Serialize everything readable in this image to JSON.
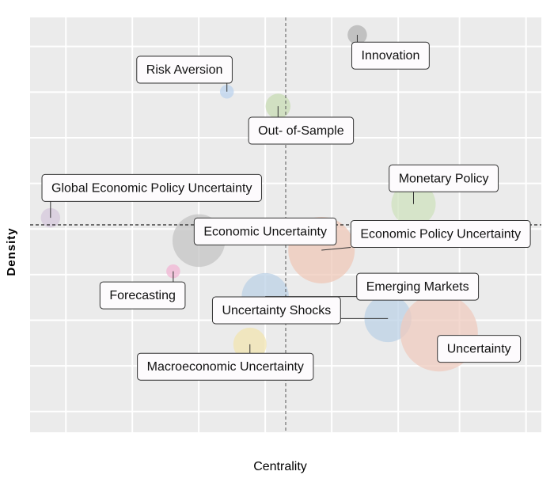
{
  "chart_data": {
    "type": "scatter",
    "xlabel": "Centrality",
    "ylabel": "Density",
    "xlim": [
      0,
      100
    ],
    "ylim": [
      0,
      100
    ],
    "reference_lines": {
      "x": 50,
      "y": 50
    },
    "grid": true,
    "colors": {
      "background": "#ebebeb",
      "grid": "#ffffff",
      "label_fill": "#fdfbfd",
      "label_stroke": "#333333"
    },
    "points": [
      {
        "term": "Innovation",
        "x": 64.0,
        "y": 95.8,
        "size": 3.5,
        "color": "#b3b3b3"
      },
      {
        "term": "Risk Aversion",
        "x": 38.5,
        "y": 82.1,
        "size": 2.5,
        "color": "#bcd3ee"
      },
      {
        "term": "Out- of-Sample",
        "x": 48.5,
        "y": 78.6,
        "size": 4.5,
        "color": "#c8dcb4"
      },
      {
        "term": "Monetary Policy",
        "x": 75.0,
        "y": 55.0,
        "size": 8.0,
        "color": "#cfe1bd"
      },
      {
        "term": "Global Economic Policy Uncertainty",
        "x": 4.0,
        "y": 51.7,
        "size": 3.5,
        "color": "#d6c8dc"
      },
      {
        "term": "Economic Uncertainty",
        "x": 33.0,
        "y": 46.2,
        "size": 9.5,
        "color": "#c4c4c4"
      },
      {
        "term": "Economic Policy Uncertainty",
        "x": 57.0,
        "y": 43.9,
        "size": 12.0,
        "color": "#efc8b8"
      },
      {
        "term": "Forecasting",
        "x": 28.0,
        "y": 38.8,
        "size": 2.5,
        "color": "#f2b6d4"
      },
      {
        "term": "Emerging Markets",
        "x": 46.0,
        "y": 32.7,
        "size": 8.5,
        "color": "#bcd2e6"
      },
      {
        "term": "Uncertainty Shocks",
        "x": 70.0,
        "y": 27.4,
        "size": 8.5,
        "color": "#bcd2e6"
      },
      {
        "term": "Macroeconomic Uncertainty",
        "x": 43.0,
        "y": 21.2,
        "size": 6.0,
        "color": "#f2e4b0"
      },
      {
        "term": "Uncertainty",
        "x": 80.0,
        "y": 24.0,
        "size": 14.0,
        "color": "#efcbbf"
      }
    ],
    "labels": [
      {
        "text": "Innovation",
        "x": 70.5,
        "y": 90.8
      },
      {
        "text": "Risk Aversion",
        "x": 30.2,
        "y": 87.4
      },
      {
        "text": "Out- of-Sample",
        "x": 53.0,
        "y": 72.7
      },
      {
        "text": "Monetary Policy",
        "x": 80.9,
        "y": 61.2
      },
      {
        "text": "Global Economic Policy Uncertainty",
        "x": 23.8,
        "y": 58.9
      },
      {
        "text": "Economic Uncertainty",
        "x": 46.0,
        "y": 48.4
      },
      {
        "text": "Economic Policy Uncertainty",
        "x": 80.3,
        "y": 47.8
      },
      {
        "text": "Forecasting",
        "x": 22.0,
        "y": 33.0
      },
      {
        "text": "Emerging Markets",
        "x": 75.8,
        "y": 35.1
      },
      {
        "text": "Uncertainty Shocks",
        "x": 48.2,
        "y": 29.4
      },
      {
        "text": "Macroeconomic Uncertainty",
        "x": 38.2,
        "y": 15.8
      },
      {
        "text": "Uncertainty",
        "x": 87.8,
        "y": 20.1
      }
    ]
  }
}
